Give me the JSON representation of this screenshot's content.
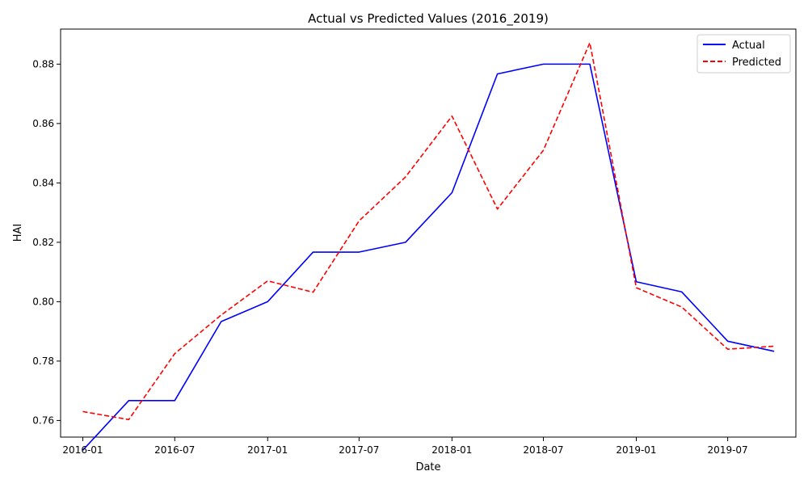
{
  "chart_data": {
    "type": "line",
    "title": "Actual vs Predicted Values (2016_2019)",
    "xlabel": "Date",
    "ylabel": "HAI",
    "x": [
      "2016-01-01",
      "2016-04-01",
      "2016-07-01",
      "2016-10-01",
      "2017-01-01",
      "2017-04-01",
      "2017-07-01",
      "2017-10-01",
      "2018-01-01",
      "2018-04-01",
      "2018-07-01",
      "2018-10-01",
      "2019-01-01",
      "2019-04-01",
      "2019-07-01",
      "2019-10-01"
    ],
    "x_ticks": [
      "2016-01",
      "2016-07",
      "2017-01",
      "2017-07",
      "2018-01",
      "2018-07",
      "2019-01",
      "2019-07"
    ],
    "y_ticks": [
      "0.76",
      "0.78",
      "0.80",
      "0.82",
      "0.84",
      "0.86",
      "0.88"
    ],
    "xlim": [
      "2015-11-18",
      "2019-11-13"
    ],
    "ylim": [
      0.7544,
      0.8918
    ],
    "grid": false,
    "legend_position": "top-right",
    "series": [
      {
        "name": "Actual",
        "color": "#0000ff",
        "style": "solid",
        "values": [
          0.75,
          0.7667,
          0.7667,
          0.7933,
          0.8,
          0.8167,
          0.8167,
          0.82,
          0.8367,
          0.8767,
          0.88,
          0.88,
          0.8067,
          0.8033,
          0.7867,
          0.7833
        ]
      },
      {
        "name": "Predicted",
        "color": "#ff0000",
        "style": "dashed",
        "values": [
          0.763,
          0.7603,
          0.7825,
          0.7955,
          0.807,
          0.8032,
          0.8272,
          0.842,
          0.8625,
          0.8312,
          0.851,
          0.8872,
          0.8047,
          0.7982,
          0.784,
          0.785
        ]
      }
    ]
  }
}
